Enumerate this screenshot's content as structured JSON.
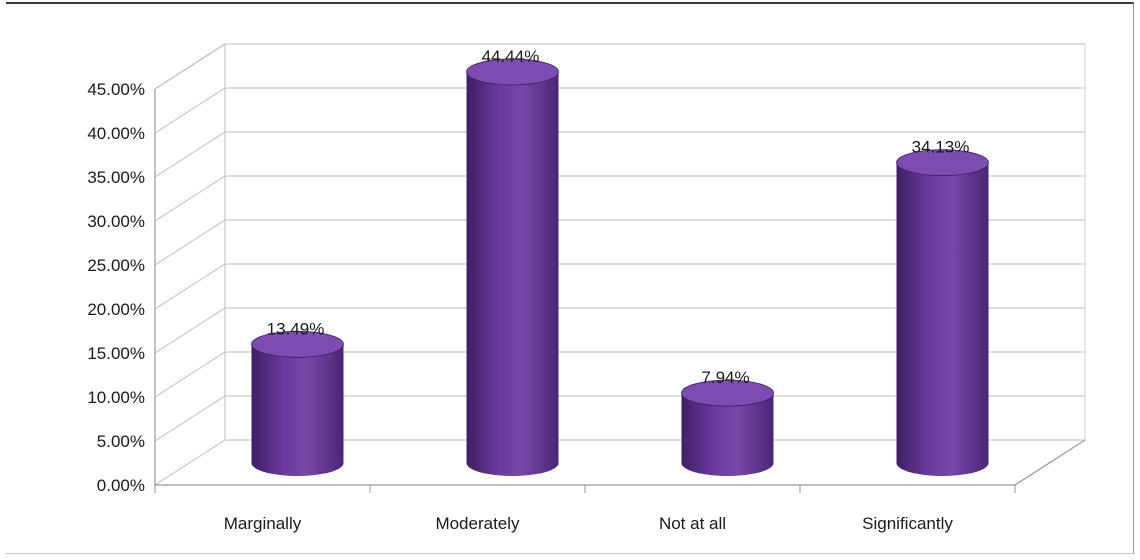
{
  "chart_data": {
    "type": "bar",
    "style": "3d-cylinder",
    "categories": [
      "Marginally",
      "Moderately",
      "Not at all",
      "Significantly"
    ],
    "values": [
      13.49,
      44.44,
      7.94,
      34.13
    ],
    "data_labels": [
      "13.49%",
      "44.44%",
      "7.94%",
      "34.13%"
    ],
    "y_ticks": [
      "0.00%",
      "5.00%",
      "10.00%",
      "15.00%",
      "20.00%",
      "25.00%",
      "30.00%",
      "35.00%",
      "40.00%",
      "45.00%"
    ],
    "ylim": [
      0,
      45
    ],
    "title": "",
    "xlabel": "",
    "ylabel": "",
    "grid": true,
    "legend": "none",
    "bar_color": "#6a3a9c",
    "bar_top_color": "#7d4cb0",
    "bar_shadow_color": "#3e1f66",
    "gridline_color": "#c9c9c9"
  }
}
